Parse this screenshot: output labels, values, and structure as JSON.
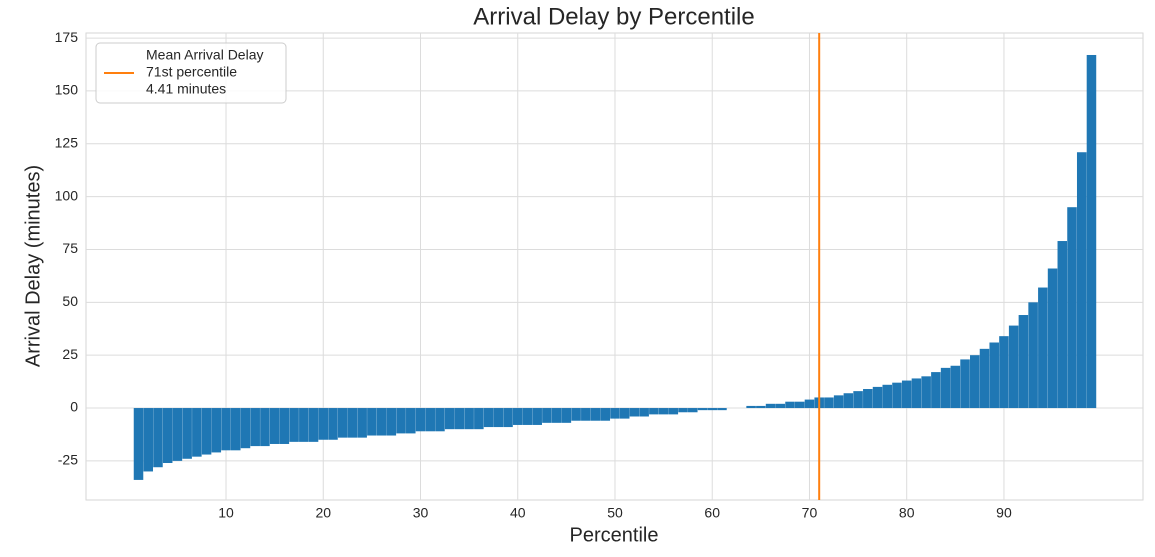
{
  "chart_data": {
    "type": "bar",
    "title": "Arrival Delay by Percentile",
    "xlabel": "Percentile",
    "ylabel": "Arrival Delay (minutes)",
    "x": [
      1,
      2,
      3,
      4,
      5,
      6,
      7,
      8,
      9,
      10,
      11,
      12,
      13,
      14,
      15,
      16,
      17,
      18,
      19,
      20,
      21,
      22,
      23,
      24,
      25,
      26,
      27,
      28,
      29,
      30,
      31,
      32,
      33,
      34,
      35,
      36,
      37,
      38,
      39,
      40,
      41,
      42,
      43,
      44,
      45,
      46,
      47,
      48,
      49,
      50,
      51,
      52,
      53,
      54,
      55,
      56,
      57,
      58,
      59,
      60,
      61,
      62,
      63,
      64,
      65,
      66,
      67,
      68,
      69,
      70,
      71,
      72,
      73,
      74,
      75,
      76,
      77,
      78,
      79,
      80,
      81,
      82,
      83,
      84,
      85,
      86,
      87,
      88,
      89,
      90,
      91,
      92,
      93,
      94,
      95,
      96,
      97,
      98,
      99
    ],
    "values": [
      -34,
      -30,
      -28,
      -26,
      -25,
      -24,
      -23,
      -22,
      -21,
      -20,
      -20,
      -19,
      -18,
      -18,
      -17,
      -17,
      -16,
      -16,
      -16,
      -15,
      -15,
      -14,
      -14,
      -14,
      -13,
      -13,
      -13,
      -12,
      -12,
      -11,
      -11,
      -11,
      -10,
      -10,
      -10,
      -10,
      -9,
      -9,
      -9,
      -8,
      -8,
      -8,
      -7,
      -7,
      -7,
      -6,
      -6,
      -6,
      -6,
      -5,
      -5,
      -4,
      -4,
      -3,
      -3,
      -3,
      -2,
      -2,
      -1,
      -1,
      -1,
      0,
      0,
      1,
      1,
      2,
      2,
      3,
      3,
      4,
      5,
      5,
      6,
      7,
      8,
      9,
      10,
      11,
      12,
      13,
      14,
      15,
      17,
      19,
      20,
      23,
      25,
      28,
      31,
      34,
      39,
      44,
      50,
      57,
      66,
      79,
      95,
      121,
      167
    ],
    "color": "#1f77b4",
    "mean_line": {
      "x": 71,
      "color": "#ff7f0e",
      "legend": [
        "Mean Arrival Delay",
        "71st percentile",
        "4.41 minutes"
      ]
    },
    "legend_position": "upper left",
    "xlim": [
      -4.4,
      104.3
    ],
    "ylim": [
      -43.5,
      177.4
    ],
    "xticks": [
      10,
      20,
      30,
      40,
      50,
      60,
      70,
      80,
      90
    ],
    "yticks": [
      -25,
      0,
      25,
      50,
      75,
      100,
      125,
      150,
      175
    ],
    "grid": true
  }
}
